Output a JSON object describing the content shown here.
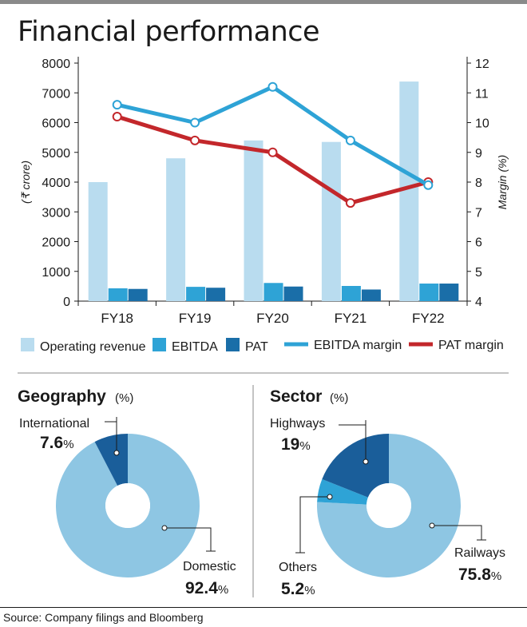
{
  "title": "Financial performance",
  "colors": {
    "revenue": "#b9dcef",
    "ebitda": "#2ea3d6",
    "pat": "#1a6ea8",
    "ebitda_margin": "#2ea3d6",
    "pat_margin": "#c3272b",
    "donut_main": "#8ec6e3",
    "donut_dark": "#1a5e9a",
    "donut_mid": "#2ea3d6"
  },
  "chart_data": [
    {
      "type": "bar",
      "categories": [
        "FY18",
        "FY19",
        "FY20",
        "FY21",
        "FY22"
      ],
      "ylabel": "(₹ crore)",
      "y2label": "Margin (%)",
      "ylim": [
        0,
        8000
      ],
      "y2lim": [
        4,
        12
      ],
      "yticks": [
        "0",
        "1000",
        "2000",
        "3000",
        "4000",
        "5000",
        "6000",
        "7000",
        "8000"
      ],
      "y2ticks": [
        "4",
        "5",
        "6",
        "7",
        "8",
        "9",
        "10",
        "11",
        "12"
      ],
      "series": [
        {
          "name": "Operating revenue",
          "type": "bar",
          "values": [
            4000,
            4800,
            5400,
            5350,
            7380
          ]
        },
        {
          "name": "EBITDA",
          "type": "bar",
          "values": [
            430,
            480,
            610,
            510,
            590
          ]
        },
        {
          "name": "PAT",
          "type": "bar",
          "values": [
            410,
            450,
            490,
            390,
            590
          ]
        },
        {
          "name": "EBITDA margin",
          "type": "line",
          "axis": "right",
          "values": [
            10.6,
            10.0,
            11.2,
            9.4,
            7.9
          ]
        },
        {
          "name": "PAT margin",
          "type": "line",
          "axis": "right",
          "values": [
            10.2,
            9.4,
            9.0,
            7.3,
            8.0
          ]
        }
      ],
      "legend_position": "bottom"
    },
    {
      "type": "pie",
      "title": "Geography",
      "unit": "(%)",
      "slices": [
        {
          "label": "Domestic",
          "value": 92.4,
          "value_text": "92.4",
          "pct": "%"
        },
        {
          "label": "International",
          "value": 7.6,
          "value_text": "7.6",
          "pct": "%"
        }
      ]
    },
    {
      "type": "pie",
      "title": "Sector",
      "unit": "(%)",
      "slices": [
        {
          "label": "Railways",
          "value": 75.8,
          "value_text": "75.8",
          "pct": "%"
        },
        {
          "label": "Highways",
          "value": 19,
          "value_text": "19",
          "pct": "%"
        },
        {
          "label": "Others",
          "value": 5.2,
          "value_text": "5.2",
          "pct": "%"
        }
      ]
    }
  ],
  "source": "Source: Company filings and Bloomberg"
}
